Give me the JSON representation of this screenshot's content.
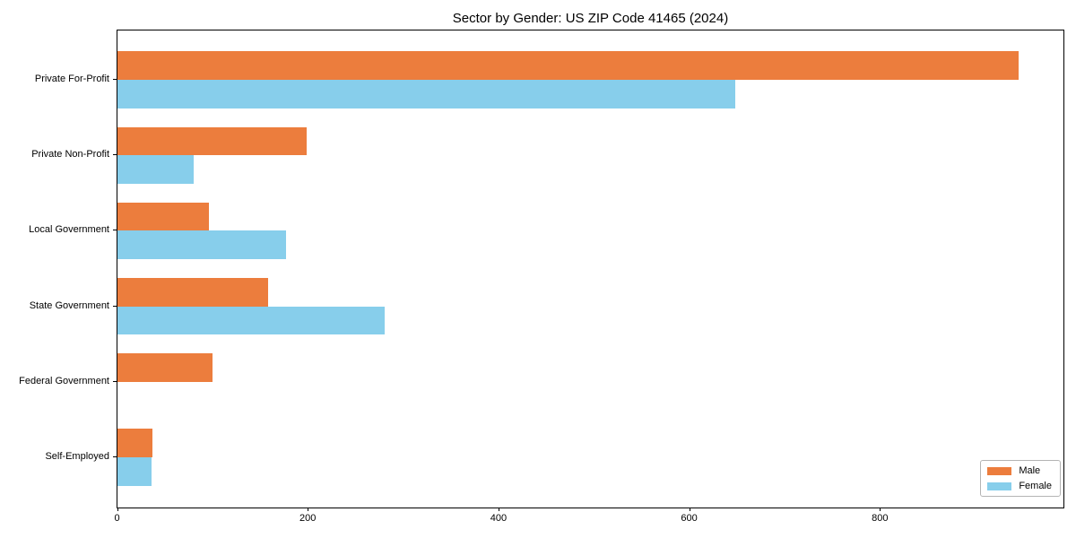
{
  "title": "Sector by Gender: US ZIP Code 41465 (2024)",
  "legend": {
    "position": "lower right",
    "items": [
      {
        "label": "Male",
        "color": "#ec7d3d"
      },
      {
        "label": "Female",
        "color": "#87ceeb"
      }
    ]
  },
  "chart_data": {
    "type": "bar",
    "orientation": "horizontal",
    "title": "Sector by Gender: US ZIP Code 41465 (2024)",
    "categories": [
      "Private For-Profit",
      "Private Non-Profit",
      "Local Government",
      "State Government",
      "Federal Government",
      "Self-Employed"
    ],
    "series": [
      {
        "name": "Male",
        "color": "#ec7d3d",
        "values": [
          945,
          198,
          96,
          158,
          100,
          37
        ]
      },
      {
        "name": "Female",
        "color": "#87ceeb",
        "values": [
          648,
          80,
          177,
          280,
          0,
          36
        ]
      }
    ],
    "xlabel": "",
    "ylabel": "",
    "xticks": [
      0,
      200,
      400,
      600,
      800
    ],
    "xlim": [
      0,
      992
    ],
    "grid": false,
    "legend_position": "lower right"
  }
}
